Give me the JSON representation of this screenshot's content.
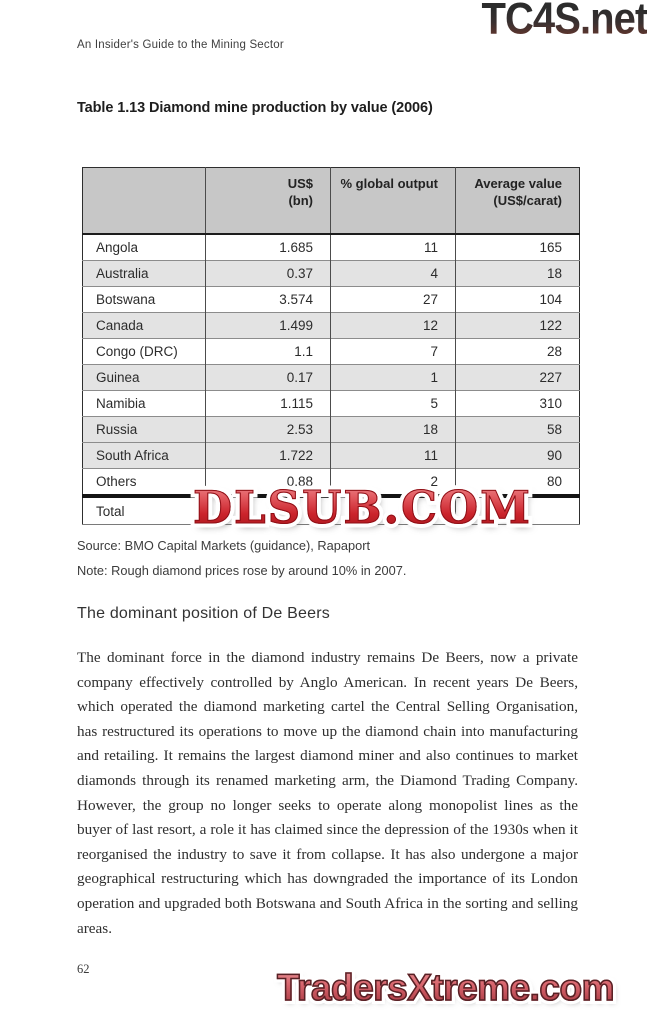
{
  "page": {
    "running_header": "An Insider's Guide to the Mining Sector",
    "page_number": "62"
  },
  "watermarks": {
    "top": "TC4S.net",
    "middle": "DLSUB.COM",
    "bottom": "TradersXtreme.com",
    "red": "#cb242c"
  },
  "table": {
    "title": "Table 1.13 Diamond mine production by value (2006)",
    "header": {
      "country": "",
      "usd_line1": "US$",
      "usd_line2": "(bn)",
      "pct": "% global output",
      "avg_line1": "Average value",
      "avg_line2": "(US$/carat)"
    },
    "rows": [
      {
        "country": "Angola",
        "us_bn": "1.685",
        "pct": "11",
        "avg": "165"
      },
      {
        "country": "Australia",
        "us_bn": "0.37",
        "pct": "4",
        "avg": "18"
      },
      {
        "country": "Botswana",
        "us_bn": "3.574",
        "pct": "27",
        "avg": "104"
      },
      {
        "country": "Canada",
        "us_bn": "1.499",
        "pct": "12",
        "avg": "122"
      },
      {
        "country": "Congo (DRC)",
        "us_bn": "1.1",
        "pct": "7",
        "avg": "28"
      },
      {
        "country": "Guinea",
        "us_bn": "0.17",
        "pct": "1",
        "avg": "227"
      },
      {
        "country": "Namibia",
        "us_bn": "1.115",
        "pct": "5",
        "avg": "310"
      },
      {
        "country": "Russia",
        "us_bn": "2.53",
        "pct": "18",
        "avg": "58"
      },
      {
        "country": "South Africa",
        "us_bn": "1.722",
        "pct": "11",
        "avg": "90"
      },
      {
        "country": "Others",
        "us_bn": "0.88",
        "pct": "2",
        "avg": "80"
      }
    ],
    "total_row": {
      "label": "Total",
      "us_bn": "",
      "pct": "",
      "avg": ""
    },
    "header_bg": "#c7c7c7",
    "stripe_bg": "#e3e3e3",
    "source": "Source: BMO Capital Markets (guidance), Rapaport",
    "note": "Note: Rough diamond prices rose by around 10% in 2007."
  },
  "section": {
    "heading": "The dominant position of De Beers",
    "body": "The dominant force in the diamond industry remains De Beers, now a private company effectively controlled by Anglo American. In recent years De Beers, which operated the diamond marketing cartel the Central Selling Organisation, has restructured its operations to move up the diamond chain into manufacturing and retailing. It remains the largest diamond miner and also continues to market diamonds through its renamed marketing arm, the Diamond Trading Company. However, the group no longer seeks to operate along monopolist lines as the buyer of last resort, a role it has claimed since the depression of the 1930s when it reorganised the industry to save it from collapse. It has also undergone a major geographical restructuring which has downgraded the importance of its London operation and upgraded both Botswana and South Africa in the sorting and selling areas."
  }
}
